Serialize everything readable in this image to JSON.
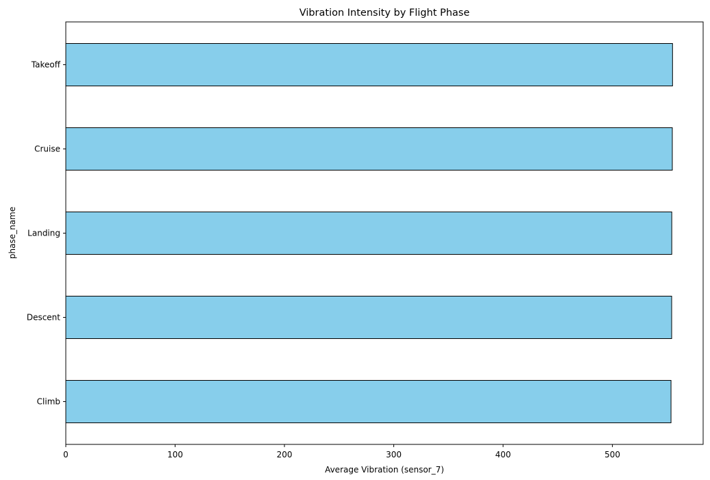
{
  "chart_data": {
    "type": "bar",
    "orientation": "horizontal",
    "title": "Vibration Intensity by Flight Phase",
    "xlabel": "Average Vibration (sensor_7)",
    "ylabel": "phase_name",
    "categories": [
      "Climb",
      "Descent",
      "Landing",
      "Cruise",
      "Takeoff"
    ],
    "values": [
      553.6,
      554.2,
      554.3,
      554.8,
      555.0
    ],
    "xlim": [
      0,
      583
    ],
    "xticks": [
      "0",
      "100",
      "200",
      "300",
      "400",
      "500"
    ],
    "grid": false,
    "legend": "none",
    "colors": {
      "bar_fill": "#87ceeb",
      "bar_edge": "#000000"
    }
  }
}
